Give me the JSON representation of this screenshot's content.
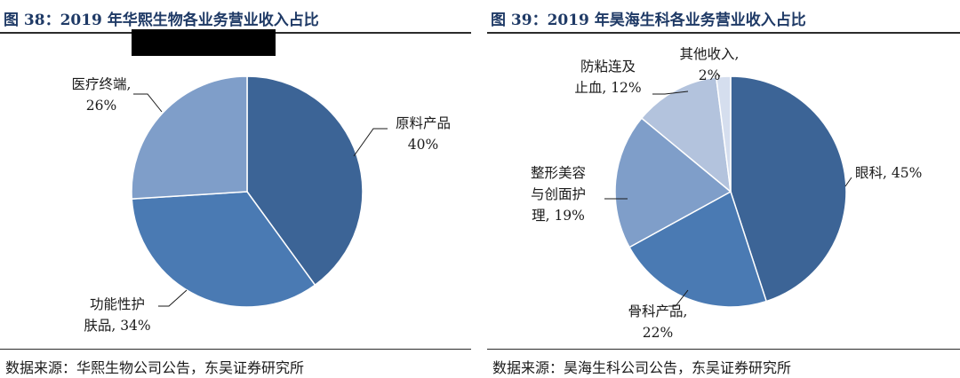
{
  "figures": [
    {
      "title": "图 38：2019 年华熙生物各业务营业收入占比",
      "source": "数据来源：华熙生物公司公告，东吴证券研究所"
    },
    {
      "title": "图 39：2019 年昊海生科各业务营业收入占比",
      "source": "数据来源：昊海生科公司公告，东吴证券研究所"
    }
  ],
  "chart_data": [
    {
      "type": "pie",
      "title": "图 38：2019 年华熙生物各业务营业收入占比",
      "slices": [
        {
          "label": "原料产品",
          "value": 40,
          "label_lines": [
            "原料产品",
            "40%"
          ],
          "color": "#3c6496"
        },
        {
          "label": "功能性护肤品",
          "value": 34,
          "label_lines": [
            "功能性护",
            "肤品, 34%"
          ],
          "color": "#4a7ab3"
        },
        {
          "label": "医疗终端",
          "value": 26,
          "label_lines": [
            "医疗终端,",
            "26%"
          ],
          "color": "#7f9ec9"
        }
      ]
    },
    {
      "type": "pie",
      "title": "图 39：2019 年昊海生科各业务营业收入占比",
      "slices": [
        {
          "label": "眼科",
          "value": 45,
          "label_lines": [
            "眼科, 45%"
          ],
          "color": "#3c6496"
        },
        {
          "label": "骨科产品",
          "value": 22,
          "label_lines": [
            "骨科产品,",
            "22%"
          ],
          "color": "#4a7ab3"
        },
        {
          "label": "整形美容与创面护理",
          "value": 19,
          "label_lines": [
            "整形美容",
            "与创面护",
            "理, 19%"
          ],
          "color": "#7f9ec9"
        },
        {
          "label": "防粘连及止血",
          "value": 12,
          "label_lines": [
            "防粘连及",
            "止血, 12%"
          ],
          "color": "#b3c3dd"
        },
        {
          "label": "其他收入",
          "value": 2,
          "label_lines": [
            "其他收入,",
            "2%"
          ],
          "color": "#d5deee"
        }
      ]
    }
  ]
}
